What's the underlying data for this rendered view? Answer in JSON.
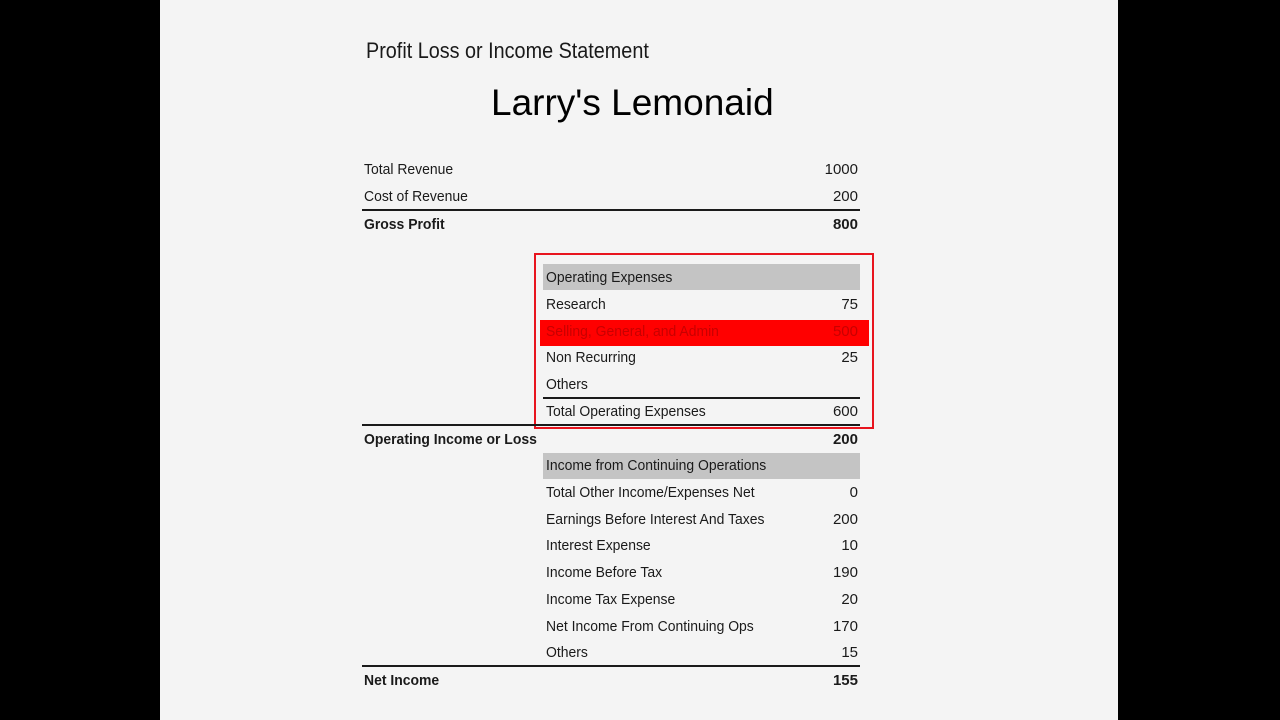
{
  "statement": {
    "subtitle": "Profit Loss or Income Statement",
    "title": "Larry's Lemonaid"
  },
  "top_rows": [
    {
      "label": "Total Revenue",
      "value": "1000"
    },
    {
      "label": "Cost of Revenue",
      "value": "200"
    }
  ],
  "gross_profit": {
    "label": "Gross Profit",
    "value": "800"
  },
  "operating_expenses": {
    "header": "Operating Expenses",
    "rows": [
      {
        "label": "Research",
        "value": "75"
      },
      {
        "label": "Selling, General, and  Admin",
        "value": "500"
      },
      {
        "label": "Non Recurring",
        "value": "25"
      },
      {
        "label": "Others",
        "value": ""
      }
    ],
    "total": {
      "label": "Total Operating Expenses",
      "value": "600"
    },
    "highlight_color": "#ff0000",
    "box_color": "#e8141e"
  },
  "operating_income": {
    "label": "Operating Income or Loss",
    "value": "200"
  },
  "continuing_ops": {
    "header": "Income from Continuing Operations",
    "rows": [
      {
        "label": "Total Other Income/Expenses Net",
        "value": "0"
      },
      {
        "label": "Earnings Before Interest And Taxes",
        "value": "200"
      },
      {
        "label": "Interest Expense",
        "value": "10"
      },
      {
        "label": "Income Before Tax",
        "value": "190"
      },
      {
        "label": "Income Tax Expense",
        "value": "20"
      },
      {
        "label": "Net Income From Continuing Ops",
        "value": "170"
      },
      {
        "label": "Others",
        "value": "15"
      }
    ]
  },
  "net_income": {
    "label": "Net Income",
    "value": "155"
  }
}
